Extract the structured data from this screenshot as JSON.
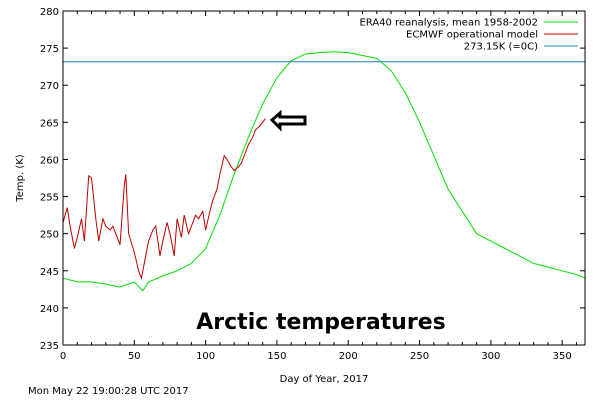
{
  "chart_data": {
    "type": "line",
    "xlabel": "Day of Year, 2017",
    "ylabel": "Temp. (K)",
    "xlim": [
      0,
      366
    ],
    "ylim": [
      235,
      280
    ],
    "xticks": [
      "0",
      "50",
      "100",
      "150",
      "200",
      "250",
      "300",
      "350"
    ],
    "yticks": [
      "235",
      "240",
      "245",
      "250",
      "255",
      "260",
      "265",
      "270",
      "275",
      "280"
    ],
    "legend_position": "top-right",
    "grid": false,
    "annotation": "Arctic temperatures",
    "series": [
      {
        "name": "ERA40 reanalysis, mean 1958-2002",
        "color": "#00e000",
        "x": [
          0,
          10,
          20,
          30,
          40,
          50,
          56,
          60,
          70,
          80,
          90,
          100,
          110,
          120,
          130,
          140,
          150,
          160,
          170,
          180,
          190,
          200,
          210,
          220,
          230,
          240,
          250,
          260,
          270,
          280,
          290,
          300,
          310,
          320,
          330,
          340,
          350,
          360,
          366
        ],
        "y": [
          244.0,
          243.5,
          243.5,
          243.2,
          242.8,
          243.5,
          242.3,
          243.5,
          244.3,
          245.0,
          246.0,
          248.0,
          252.5,
          258.0,
          263.0,
          267.5,
          271.0,
          273.3,
          274.2,
          274.4,
          274.5,
          274.4,
          274.0,
          273.6,
          272.0,
          269.0,
          265.0,
          260.5,
          256.0,
          253.0,
          250.0,
          249.0,
          248.0,
          247.0,
          246.0,
          245.5,
          245.0,
          244.5,
          244.0
        ]
      },
      {
        "name": "ECMWF operational model",
        "color": "#c00000",
        "x": [
          0,
          3,
          5,
          8,
          10,
          13,
          15,
          18,
          20,
          23,
          25,
          28,
          30,
          33,
          35,
          38,
          40,
          43,
          44,
          46,
          50,
          53,
          55,
          58,
          60,
          63,
          65,
          68,
          70,
          73,
          75,
          78,
          80,
          83,
          85,
          88,
          90,
          93,
          95,
          98,
          100,
          103,
          105,
          108,
          110,
          113,
          115,
          118,
          120,
          123,
          125,
          128,
          130,
          133,
          135,
          138,
          142
        ],
        "y": [
          251.5,
          253.5,
          251.0,
          248.0,
          249.5,
          252.0,
          249.0,
          257.8,
          257.5,
          252.0,
          249.0,
          252.0,
          251.0,
          250.5,
          251.0,
          249.5,
          248.5,
          256.5,
          258.0,
          250.0,
          247.5,
          245.0,
          244.0,
          247.0,
          249.0,
          250.5,
          251.0,
          247.0,
          249.0,
          251.5,
          250.0,
          247.0,
          252.0,
          249.5,
          252.5,
          250.0,
          251.0,
          252.5,
          252.0,
          253.0,
          250.5,
          253.0,
          254.5,
          256.0,
          258.0,
          260.5,
          260.0,
          259.0,
          258.5,
          259.0,
          259.5,
          261.0,
          262.0,
          263.0,
          264.0,
          264.5,
          265.5
        ]
      },
      {
        "name": "273.15K (=0C)",
        "color": "#1f7fbf",
        "x": [
          0,
          366
        ],
        "y": [
          273.15,
          273.15
        ]
      }
    ]
  },
  "footer": {
    "timestamp": "Mon May 22 19:00:28 UTC 2017"
  },
  "icons": {
    "pointer": "left-arrow-icon"
  }
}
